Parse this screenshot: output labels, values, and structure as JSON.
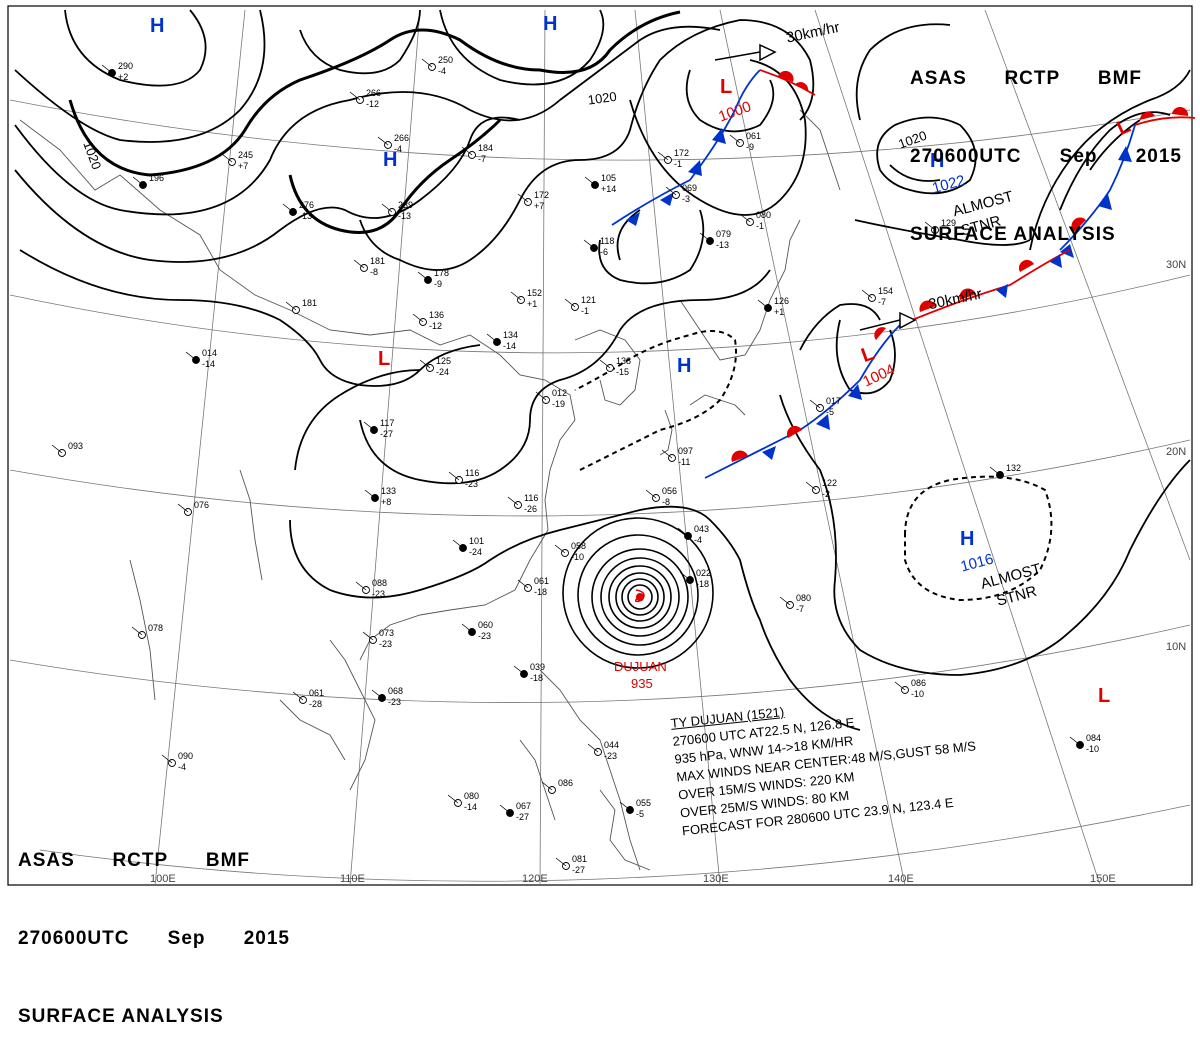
{
  "header_top": {
    "line1": [
      "ASAS",
      "RCTP",
      "BMF"
    ],
    "line2": [
      "270600UTC",
      "Sep",
      "2015"
    ],
    "line3": "SURFACE ANALYSIS"
  },
  "header_bottom": {
    "line1": [
      "ASAS",
      "RCTP",
      "BMF"
    ],
    "line2": [
      "270600UTC",
      "Sep",
      "2015"
    ],
    "line3": "SURFACE ANALYSIS"
  },
  "typhoon_info": {
    "line1": "TY DUJUAN (1521)",
    "line2": "270600 UTC AT22.5 N, 126.8 E",
    "line3": "935 hPa, WNW 14->18 KM/HR",
    "line4": "MAX WINDS NEAR CENTER:48 M/S,GUST 58 M/S",
    "line5": "OVER 15M/S WINDS: 220 KM",
    "line6": "OVER 25M/S WINDS: 80 KM",
    "line7": "FORECAST FOR 280600 UTC 23.9 N, 123.4 E"
  },
  "typhoon": {
    "name": "DUJUAN",
    "pressure": "935"
  },
  "pressure_centers": [
    {
      "type": "H",
      "value": "",
      "color": "#0033cc"
    },
    {
      "type": "H",
      "value": "",
      "color": "#0033cc"
    },
    {
      "type": "H",
      "value": "",
      "color": "#0033cc"
    },
    {
      "type": "L",
      "value": "1000",
      "color": "#e00000"
    },
    {
      "type": "H",
      "value": "1022",
      "color": "#0033cc"
    },
    {
      "type": "L",
      "value": "",
      "color": "#e00000"
    },
    {
      "type": "L",
      "value": "",
      "color": "#e00000"
    },
    {
      "type": "H",
      "value": "",
      "color": "#0033cc"
    },
    {
      "type": "L",
      "value": "1004",
      "color": "#e00000"
    },
    {
      "type": "H",
      "value": "1016",
      "color": "#0033cc"
    },
    {
      "type": "L",
      "value": "",
      "color": "#e00000"
    }
  ],
  "isobar_labels": [
    "1020",
    "1020",
    "1020"
  ],
  "motion_labels": [
    "30km/hr",
    "30km/hr"
  ],
  "stationary_labels": [
    {
      "line1": "ALMOST",
      "line2": "STNR"
    },
    {
      "line1": "ALMOST",
      "line2": "STNR"
    }
  ],
  "latitude_labels": [
    "30N",
    "20N",
    "10N"
  ],
  "longitude_labels": [
    "100E",
    "110E",
    "120E",
    "130E",
    "140E",
    "150E"
  ],
  "stations": [
    {
      "t": "290",
      "p": "+2"
    },
    {
      "t": "266",
      "p": "-12"
    },
    {
      "t": "250",
      "p": "-4"
    },
    {
      "t": "196",
      "p": ""
    },
    {
      "t": "266",
      "p": "-4"
    },
    {
      "t": "184",
      "p": "-7"
    },
    {
      "t": "105",
      "p": "+14"
    },
    {
      "t": "172",
      "p": "+7"
    },
    {
      "t": "245",
      "p": "+7"
    },
    {
      "t": "276",
      "p": "-13"
    },
    {
      "t": "239",
      "p": "-13"
    },
    {
      "t": "181",
      "p": "-8"
    },
    {
      "t": "178",
      "p": "-9"
    },
    {
      "t": "152",
      "p": "+1"
    },
    {
      "t": "121",
      "p": "-1"
    },
    {
      "t": "118",
      "p": "-6"
    },
    {
      "t": "172",
      "p": "-1"
    },
    {
      "t": "069",
      "p": "-3"
    },
    {
      "t": "079",
      "p": "-13"
    },
    {
      "t": "080",
      "p": "-1"
    },
    {
      "t": "061",
      "p": "-9"
    },
    {
      "t": "126",
      "p": "+1"
    },
    {
      "t": "181",
      "p": ""
    },
    {
      "t": "136",
      "p": "-12"
    },
    {
      "t": "134",
      "p": "-14"
    },
    {
      "t": "125",
      "p": "-24"
    },
    {
      "t": "138",
      "p": "-15"
    },
    {
      "t": "117",
      "p": "-27"
    },
    {
      "t": "093",
      "p": ""
    },
    {
      "t": "116",
      "p": "-23"
    },
    {
      "t": "133",
      "p": "+8"
    },
    {
      "t": "116",
      "p": "-26"
    },
    {
      "t": "056",
      "p": "-8"
    },
    {
      "t": "043",
      "p": "-4"
    },
    {
      "t": "097",
      "p": "-11"
    },
    {
      "t": "076",
      "p": ""
    },
    {
      "t": "101",
      "p": "-24"
    },
    {
      "t": "058",
      "p": "-10"
    },
    {
      "t": "061",
      "p": "-18"
    },
    {
      "t": "022",
      "p": "-18"
    },
    {
      "t": "088",
      "p": "-23"
    },
    {
      "t": "073",
      "p": "-23"
    },
    {
      "t": "060",
      "p": "-23"
    },
    {
      "t": "078",
      "p": ""
    },
    {
      "t": "061",
      "p": "-28"
    },
    {
      "t": "039",
      "p": "-18"
    },
    {
      "t": "090",
      "p": "-4"
    },
    {
      "t": "080",
      "p": "-14"
    },
    {
      "t": "067",
      "p": "-27"
    },
    {
      "t": "044",
      "p": "-23"
    },
    {
      "t": "086",
      "p": ""
    },
    {
      "t": "055",
      "p": "-5"
    },
    {
      "t": "081",
      "p": "-27"
    },
    {
      "t": "122",
      "p": "-2"
    },
    {
      "t": "132",
      "p": ""
    },
    {
      "t": "080",
      "p": "-7"
    },
    {
      "t": "154",
      "p": "-7"
    },
    {
      "t": "084",
      "p": "-10"
    },
    {
      "t": "086",
      "p": "-10"
    },
    {
      "t": "129",
      "p": ""
    },
    {
      "t": "068",
      "p": "-23"
    },
    {
      "t": "012",
      "p": "-19"
    },
    {
      "t": "017",
      "p": "-5"
    },
    {
      "t": "014",
      "p": "-14"
    }
  ]
}
